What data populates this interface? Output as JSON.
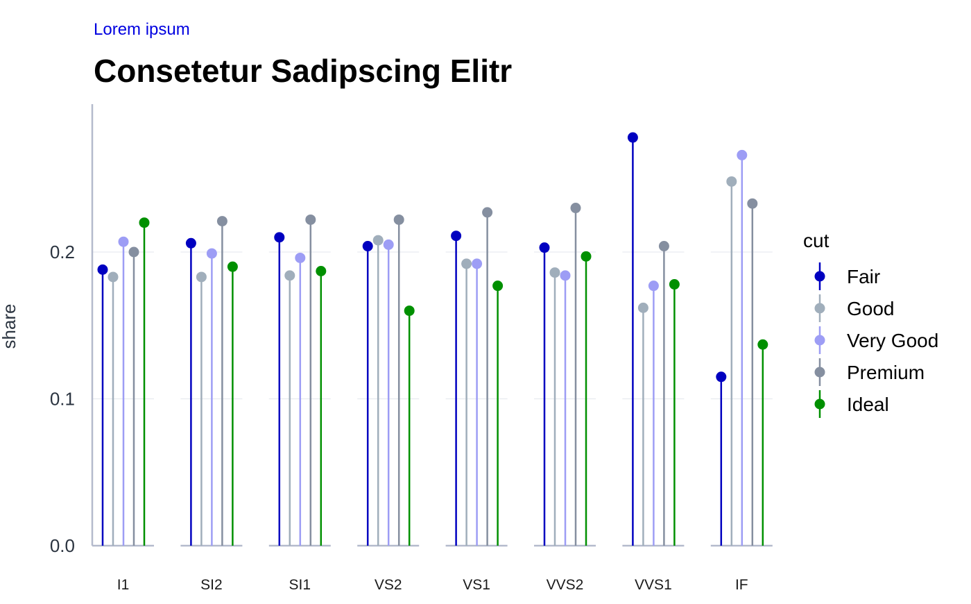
{
  "chart_data": {
    "type": "lollipop",
    "subtitle": "Lorem ipsum",
    "title": "Consetetur Sadipscing Elitr",
    "ylabel": "share",
    "xlabel": "",
    "ylim": [
      0,
      0.3
    ],
    "yticks": [
      {
        "value": 0.0,
        "label": "0.0"
      },
      {
        "value": 0.1,
        "label": "0.1"
      },
      {
        "value": 0.2,
        "label": "0.2"
      }
    ],
    "grid": "horizontal",
    "legend_position": "right",
    "legend_title": "cut",
    "categories": [
      "I1",
      "SI2",
      "SI1",
      "VS2",
      "VS1",
      "VVS2",
      "VVS1",
      "IF"
    ],
    "series": [
      {
        "name": "Fair",
        "color": "#0000C0",
        "values": [
          0.188,
          0.206,
          0.21,
          0.204,
          0.211,
          0.203,
          0.278,
          0.115
        ]
      },
      {
        "name": "Good",
        "color": "#A0AEBB",
        "values": [
          0.183,
          0.183,
          0.184,
          0.208,
          0.192,
          0.186,
          0.162,
          0.248
        ]
      },
      {
        "name": "Very Good",
        "color": "#9D9DF5",
        "values": [
          0.207,
          0.199,
          0.196,
          0.205,
          0.192,
          0.184,
          0.177,
          0.266
        ]
      },
      {
        "name": "Premium",
        "color": "#858FA0",
        "values": [
          0.2,
          0.221,
          0.222,
          0.222,
          0.227,
          0.23,
          0.204,
          0.233
        ]
      },
      {
        "name": "Ideal",
        "color": "#009000",
        "values": [
          0.22,
          0.19,
          0.187,
          0.16,
          0.177,
          0.197,
          0.178,
          0.137
        ]
      }
    ],
    "colors": {
      "axis": "#B4BACC",
      "grid": "#E3E6EC",
      "subtitle": "#0000E0",
      "title": "#000000",
      "tick": "#2B3440"
    }
  }
}
